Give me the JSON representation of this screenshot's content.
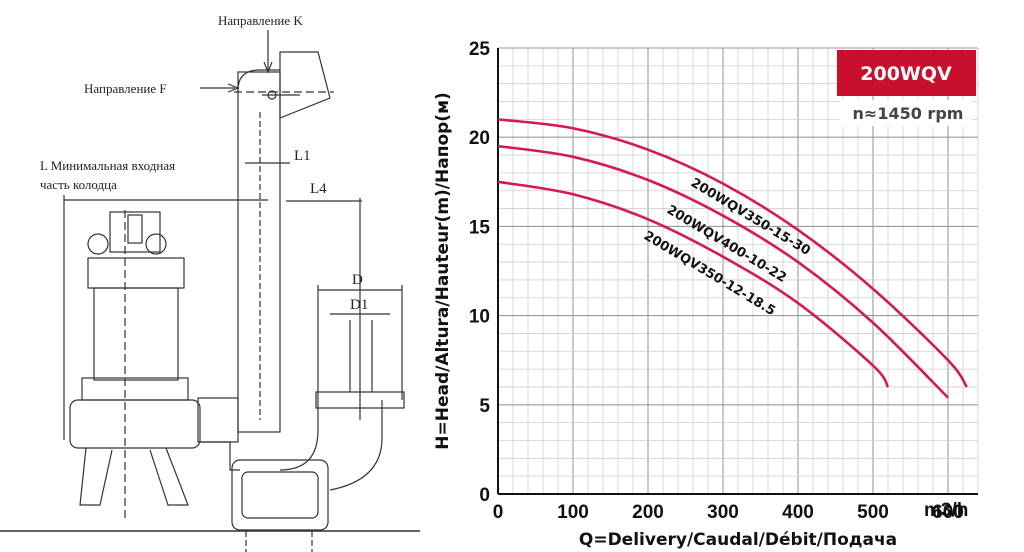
{
  "drawing": {
    "direction_k": "Направление K",
    "direction_f": "Направление F",
    "l_min_line1": "L Минимальная входная",
    "l_min_line2": "часть колодца",
    "l1": "L1",
    "l4": "L4",
    "d": "D",
    "d1": "D1"
  },
  "chart_data": {
    "type": "line",
    "badge": "200WQV",
    "speed": "n≈1450 rpm",
    "xlabel": "Q=Delivery/Caudal/Débit/Подача",
    "xunit": "m3/h",
    "ylabel": "H=Head/Altura/Hauteur(m)/Напор(м)",
    "xlim": [
      0,
      640
    ],
    "ylim": [
      0,
      25
    ],
    "xticks": [
      0,
      100,
      200,
      300,
      400,
      500,
      600
    ],
    "yticks": [
      0,
      5,
      10,
      15,
      20,
      25
    ],
    "grid": true,
    "series": [
      {
        "name": "200WQV350-15-30",
        "x": [
          0,
          100,
          200,
          300,
          400,
          500,
          600,
          625
        ],
        "y": [
          21,
          20.5,
          19.3,
          17.4,
          14.8,
          11.5,
          7.5,
          6
        ]
      },
      {
        "name": "200WQV400-10-22",
        "x": [
          0,
          100,
          200,
          300,
          400,
          500,
          600
        ],
        "y": [
          19.5,
          18.9,
          17.6,
          15.6,
          13,
          9.6,
          5.4
        ]
      },
      {
        "name": "200WQV350-12-18.5",
        "x": [
          0,
          100,
          200,
          300,
          400,
          500,
          520
        ],
        "y": [
          17.5,
          16.8,
          15.4,
          13.3,
          10.7,
          7.2,
          6
        ]
      }
    ],
    "colors": {
      "curve": "#d4185a",
      "badge": "#c8102e",
      "grid_major": "#9a9a9a",
      "grid_minor": "#cfcfcf"
    }
  }
}
